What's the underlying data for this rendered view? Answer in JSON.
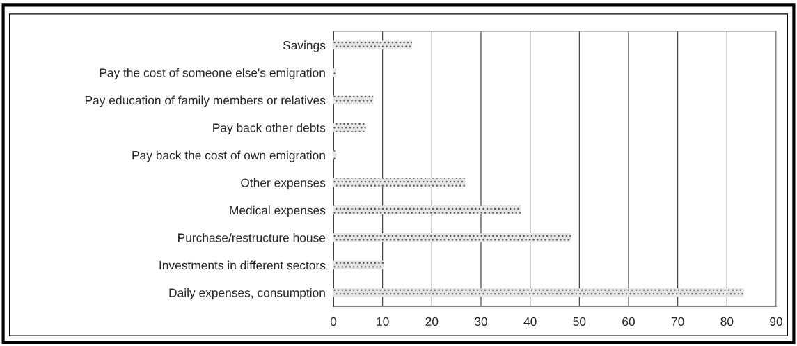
{
  "chart_data": {
    "type": "bar",
    "orientation": "horizontal",
    "categories": [
      "Savings",
      "Pay the cost of someone else's emigration",
      "Pay education of family members or relatives",
      "Pay back other debts",
      "Pay back the cost of own emigration",
      "Other expenses",
      "Medical expenses",
      "Purchase/restructure house",
      "Investments in different sectors",
      "Daily expenses, consumption"
    ],
    "values": [
      16.0,
      0.5,
      8.1,
      6.6,
      0.5,
      26.8,
      38.1,
      48.3,
      10.3,
      83.4
    ],
    "color": "#e6e6e6",
    "xlim": [
      0,
      90
    ],
    "xticks": [
      0,
      10,
      20,
      30,
      40,
      50,
      60,
      70,
      80,
      90
    ],
    "grid": "x",
    "legend": false
  }
}
